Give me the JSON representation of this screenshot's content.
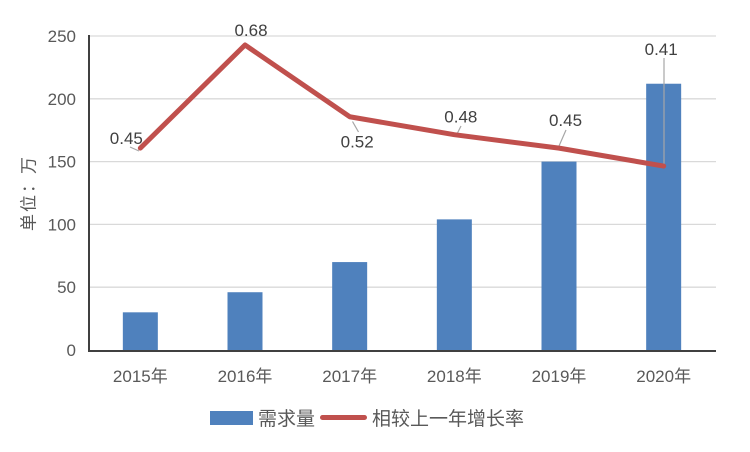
{
  "chart_data": {
    "type": "bar-line-combo",
    "title": "",
    "categories": [
      "2015年",
      "2016年",
      "2017年",
      "2018年",
      "2019年",
      "2020年"
    ],
    "series": [
      {
        "name": "需求量",
        "chart_type": "bar",
        "axis": "primary",
        "color": "#4f81bd",
        "values": [
          30,
          46,
          70,
          104,
          150,
          212
        ]
      },
      {
        "name": "相较上一年增长率",
        "chart_type": "line",
        "axis": "secondary",
        "color": "#c0504d",
        "values": [
          0.45,
          0.68,
          0.52,
          0.48,
          0.45,
          0.41
        ],
        "point_labels": [
          "0.45",
          "0.68",
          "0.52",
          "0.48",
          "0.45",
          "0.41"
        ]
      }
    ],
    "xlabel": "",
    "ylabel": "单位：万",
    "ylim": [
      0,
      250
    ],
    "yticks": [
      0,
      50,
      100,
      150,
      200,
      250
    ],
    "y2lim": [
      0,
      0.7
    ],
    "grid": true,
    "legend_position": "bottom"
  },
  "colors": {
    "background": "#ffffff",
    "gridline": "#d9d9d9",
    "axis_line": "#404040",
    "tick_text": "#595959",
    "category_text": "#595959",
    "data_label_text": "#404040",
    "leader_line": "#a6a6a6",
    "bar": "#4f81bd",
    "line": "#c0504d"
  }
}
